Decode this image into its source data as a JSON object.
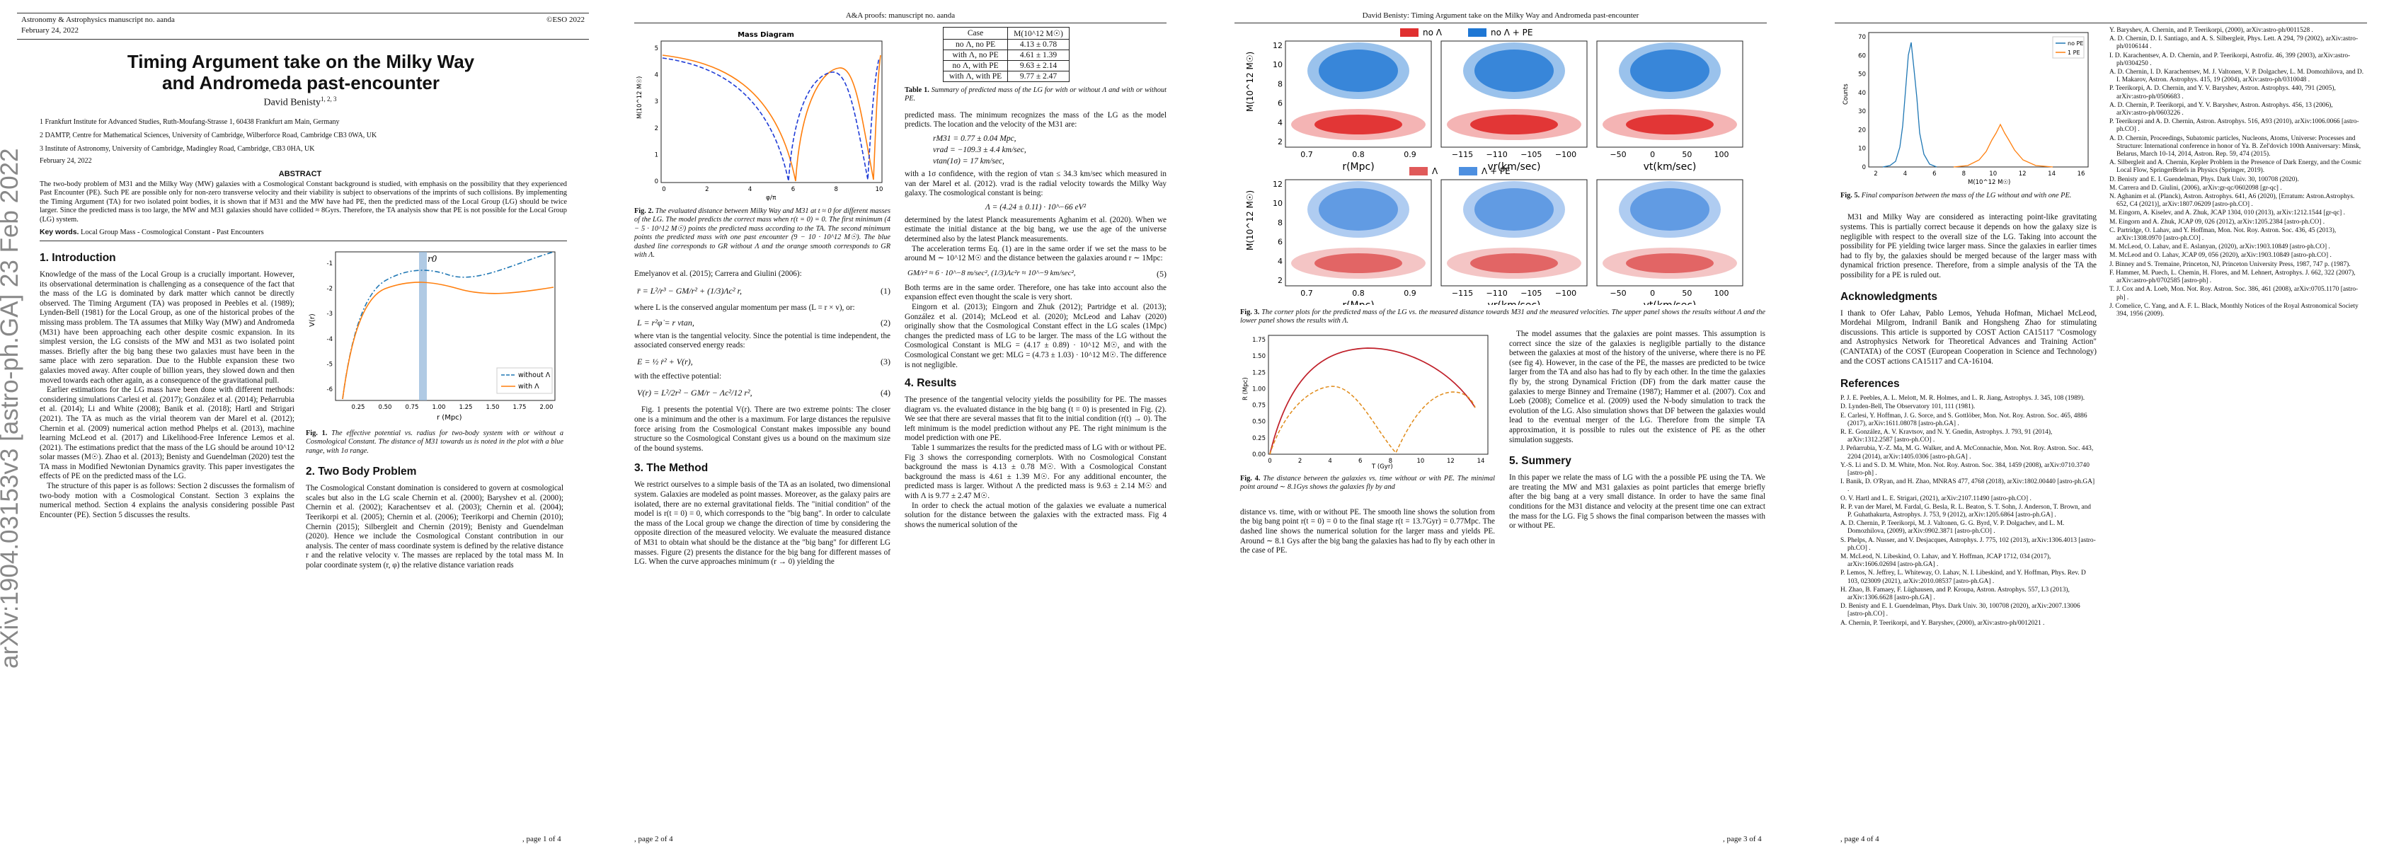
{
  "page1": {
    "journal": "Astronomy & Astrophysics manuscript no. aanda",
    "date_box": "February 24, 2022",
    "copyright": "©ESO 2022",
    "title": "Timing Argument take on the Milky Way and Andromeda past-encounter",
    "author": "David Benisty",
    "author_sup": "1, 2, 3",
    "affiliations": [
      "1 Frankfurt Institute for Advanced Studies, Ruth-Moufang-Strasse 1, 60438 Frankfurt am Main, Germany",
      "2 DAMTP, Centre for Mathematical Sciences, University of Cambridge, Wilberforce Road, Cambridge CB3 0WA, UK",
      "3 Institute of Astronomy, University of Cambridge, Madingley Road, Cambridge, CB3 0HA, UK"
    ],
    "date": "February 24, 2022",
    "abstract_heading": "ABSTRACT",
    "abstract": "The two-body problem of M31 and the Milky Way (MW) galaxies with a Cosmological Constant background is studied, with emphasis on the possibility that they experienced Past Encounter (PE). Such PE are possible only for non-zero transverse velocity and their viability is subject to observations of the imprints of such collisions. By implementing the Timing Argument (TA) for two isolated point bodies, it is shown that if M31 and the MW have had PE, then the predicted mass of the Local Group (LG) should be twice larger. Since the predicted mass is too large, the MW and M31 galaxies should have collided ≈ 8Gyrs. Therefore, the TA analysis show that PE is not possible for the Local Group (LG) system.",
    "keywords_label": "Key words.",
    "keywords": "Local Group Mass - Cosmological Constant - Past Encounters",
    "sec1_title": "1. Introduction",
    "sec1_p1": "Knowledge of the mass of the Local Group is a crucially important. However, its observational determination is challenging as a consequence of the fact that the mass of the LG is dominated by dark matter which cannot be directly observed. The Timing Argument (TA) was proposed in Peebles et al. (1989); Lynden-Bell (1981) for the Local Group, as one of the historical probes of the missing mass problem. The TA assumes that Milky Way (MW) and Andromeda (M31) have been approaching each other despite cosmic expansion. In its simplest version, the LG consists of the MW and M31 as two isolated point masses. Briefly after the big bang these two galaxies must have been in the same place with zero separation. Due to the Hubble expansion these two galaxies moved away. After couple of billion years, they slowed down and then moved towards each other again, as a consequence of the gravitational pull.",
    "sec1_p2": "Earlier estimations for the LG mass have been done with different methods: considering simulations Carlesi et al. (2017); González et al. (2014); Peñarrubia et al. (2014); Li and White (2008); Banik et al. (2018); Hartl and Strigari (2021). The TA as much as the virial theorem van der Marel et al. (2012); Chernin et al. (2009) numerical action method Phelps et al. (2013), machine learning McLeod et al. (2017) and Likelihood-Free Inference Lemos et al. (2021). The estimations predict that the mass of the LG should be around 10^12 solar masses (M☉). Zhao et al. (2013); Benisty and Guendelman (2020) test the TA mass in Modified Newtonian Dynamics gravity. This paper investigates the effects of PE on the predicted mass of the LG.",
    "sec1_p3": "The structure of this paper is as follows: Section 2 discusses the formalism of two-body motion with a Cosmological Constant. Section 3 explains the numerical method. Section 4 explains the analysis considering possible Past Encounter (PE). Section 5 discusses the results.",
    "fig1_caption_label": "Fig. 1.",
    "fig1_caption": "The effective potential vs. radius for two-body system with or without a Cosmological Constant. The distance of M31 towards us is noted in the plot with a blue range, with 1σ range.",
    "sec2_title": "2. Two Body Problem",
    "sec2_p1": "The Cosmological Constant domination is considered to govern at cosmological scales but also in the LG scale Chernin et al. (2000); Baryshev et al. (2000); Chernin et al. (2002); Karachentsev et al. (2003); Chernin et al. (2004); Teerikorpi et al. (2005); Chernin et al. (2006); Teerikorpi and Chernin (2010); Chernin (2015); Silbergleit and Chernin (2019); Benisty and Guendelman (2020). Hence we include the Cosmological Constant contribution in our analysis. The center of mass coordinate system is defined by the relative distance r and the relative velocity v. The masses are replaced by the total mass M. In polar coordinate system (r, φ) the relative distance variation reads",
    "footer": ", page 1 of 4",
    "arxiv": "arXiv:1904.03153v3  [astro-ph.GA]  23 Feb 2022",
    "fig1_plot": {
      "ylabel": "V(r)",
      "xlabel": "r (Mpc)",
      "marker": "r0",
      "yticks": [
        "-1",
        "-2",
        "-3",
        "-4",
        "-5",
        "-6"
      ],
      "xticks": [
        "0.25",
        "0.50",
        "0.75",
        "1.00",
        "1.25",
        "1.50",
        "1.75",
        "2.00"
      ],
      "legend": [
        "without Λ",
        "with Λ"
      ]
    }
  },
  "page2": {
    "header": "A&A proofs: manuscript no. aanda",
    "fig2_title": "Mass Diagram",
    "fig2_ylabel": "M(10^12 M☉)",
    "fig2_xlabel": "φ/π",
    "fig2_caption_label": "Fig. 2.",
    "fig2_caption": "The evaluated distance between Milky Way and M31 at t ≈ 0 for different masses of the LG. The model predicts the correct mass when r(t = 0) = 0. The first minimum (4 − 5 · 10^12 M☉) points the predicted mass according to the TA. The second minimum points the predicted mass with one past encounter (9 − 10 · 10^12 M☉). The blue dashed line corresponds to GR without Λ and the orange smooth corresponds to GR with Λ.",
    "intro_text": "Emelyanov et al. (2015); Carrera and Giulini (2006):",
    "eq1": "r̈ = L²/r³ − GM/r² + (1/3)Λc² r,",
    "eq1_num": "(1)",
    "eq1_text": "where L is the conserved angular momentum per mass (L = r × v), or:",
    "eq2": "L = r²φ̇ = r vtan,",
    "eq2_num": "(2)",
    "eq2_text": "where vtan is the tangential velocity. Since the potential is time independent, the associated conserved energy reads:",
    "eq3": "E = ½ ṙ² + V(r),",
    "eq3_num": "(3)",
    "eq3_text": "with the effective potential:",
    "eq4": "V(r) = L²/2r² − GM/r − Λc²/12 r²,",
    "eq4_num": "(4)",
    "eq4_text": "Fig. 1 presents the potential V(r). There are two extreme points: The closer one is a minimum and the other is a maximum. For large distances the repulsive force arising from the Cosmological Constant makes impossible any bound structure so the Cosmological Constant gives us a bound on the maximum size of the bound systems.",
    "sec3_title": "3. The Method",
    "sec3_p1": "We restrict ourselves to a simple basis of the TA as an isolated, two dimensional system. Galaxies are modeled as point masses. Moreover, as the galaxy pairs are isolated, there are no external gravitational fields. The \"initial condition\" of the model is r(t = 0) = 0, which corresponds to the \"big bang\". In order to calculate the mass of the Local group we change the direction of time by considering the opposite direction of the measured velocity. We evaluate the measured distance of M31 to obtain what should be the distance at the \"big bang\" for different LG masses. Figure (2) presents the distance for the big bang for different masses of LG. When the curve approaches minimum (r → 0) yielding the",
    "table_header": [
      "Case",
      "M(10^12 M☉)"
    ],
    "table_rows": [
      [
        "no Λ, no PE",
        "4.13 ± 0.78"
      ],
      [
        "with Λ, no PE",
        "4.61 ± 1.39"
      ],
      [
        "no Λ, with PE",
        "9.63 ± 2.14"
      ],
      [
        "with Λ, with PE",
        "9.77 ± 2.47"
      ]
    ],
    "table_caption_label": "Table 1.",
    "table_caption": "Summary of predicted mass of the LG for with or without Λ and with or without PE.",
    "col2_p1": "predicted mass. The minimum recognizes the mass of the LG as the model predicts. The location and the velocity of the M31 are:",
    "m31_r": "rM31 = 0.77 ± 0.04 Mpc,",
    "m31_vrad": "vrad = −109.3 ± 4.4 km/sec,",
    "m31_vtan": "vtan(1σ) = 17 km/sec,",
    "col2_p2": "with a 1σ confidence, with the region of vtan ≤ 34.3 km/sec which measured in van der Marel et al. (2012). vrad is the radial velocity towards the Milky Way galaxy. The cosmological constant is being:",
    "lambda_eq": "Λ = (4.24 ± 0.11) · 10^−66 eV²",
    "col2_p3": "determined by the latest Planck measurements Aghanim et al. (2020). When we estimate the initial distance at the big bang, we use the age of the universe determined also by the latest Planck measurements.",
    "col2_p4": "The acceleration terms Eq. (1) are in the same order if we set the mass to be around M ∼ 10^12 M☉ and the distance between the galaxies around r ∼ 1Mpc:",
    "eq5": "GM/r² ≈ 6 · 10^−8 m/sec²,  (1/3)Λc²r ≈ 10^−9 km/sec²,",
    "eq5_num": "(5)",
    "col2_p5": "Both terms are in the same order. Therefore, one has take into account also the expansion effect even thought the scale is very short.",
    "col2_p6": "Eingorn et al. (2013); Eingorn and Zhuk (2012); Partridge et al. (2013); González et al. (2014); McLeod et al. (2020); McLeod and Lahav (2020) originally show that the Cosmological Constant effect in the LG scales (1Mpc) changes the predicted mass of LG to be larger. The mass of the LG without the Cosmological Constant is MLG = (4.17 ± 0.89) · 10^12 M☉, and with the Cosmological Constant we get: MLG = (4.73 ± 1.03) · 10^12 M☉. The difference is not negligible.",
    "sec4_title": "4. Results",
    "sec4_p1": "The presence of the tangential velocity yields the possibility for PE. The masses diagram vs. the evaluated distance in the big bang (t = 0) is presented in Fig. (2). We see that there are several masses that fit to the initial condition (r(t) → 0). The left minimum is the model prediction without any PE. The right minimum is the model prediction with one PE.",
    "sec4_p2": "Table 1 summarizes the results for the predicted mass of LG with or without PE. Fig 3 shows the corresponding cornerplots. With no Cosmological Constant background the mass is 4.13 ± 0.78 M☉. With a Cosmological Constant background the mass is 4.61 ± 1.39 M☉. For any additional encounter, the predicted mass is larger. Without Λ the predicted mass is 9.63 ± 2.14 M☉ and with Λ is 9.77 ± 2.47 M☉.",
    "sec4_p3": "In order to check the actual motion of the galaxies we evaluate a numerical solution for the distance between the galaxies with the extracted mass. Fig 4 shows the numerical solution of the",
    "footer": ", page 2 of 4",
    "fig2_yticks": [
      "5",
      "4",
      "3",
      "2",
      "1",
      "0"
    ],
    "fig2_xticks": [
      "0",
      "2",
      "4",
      "6",
      "8",
      "10"
    ]
  },
  "page3": {
    "header": "David Benisty: Timing Argument take on the Milky Way and Andromeda past-encounter",
    "legend_top": [
      "no Λ",
      "no Λ + PE"
    ],
    "legend_bottom": [
      "Λ",
      "Λ + PE"
    ],
    "corner_ylabel": "M(10^12 M☉)",
    "corner_xlabels": [
      "r(Mpc)",
      "vr(km/sec)",
      "vt(km/sec)"
    ],
    "corner_yticks": [
      "12",
      "10",
      "8",
      "6",
      "4",
      "2"
    ],
    "corner_xticks": [
      [
        "0.7",
        "0.8",
        "0.9"
      ],
      [
        "−115",
        "−110",
        "−105",
        "−100"
      ],
      [
        "−50",
        "0",
        "50",
        "100"
      ]
    ],
    "fig3_caption_label": "Fig. 3.",
    "fig3_caption": "The corner plots for the predicted mass of the LG vs. the measured distance towards M31 and the measured velocities. The upper panel shows the results without Λ and the lower panel shows the results with Λ.",
    "fig4_ylabel": "R (Mpc)",
    "fig4_xlabel": "T (Gyr)",
    "fig4_yticks": [
      "1.75",
      "1.50",
      "1.25",
      "1.00",
      "0.75",
      "0.50",
      "0.25",
      "0.00"
    ],
    "fig4_xticks": [
      "0",
      "2",
      "4",
      "6",
      "8",
      "10",
      "12",
      "14"
    ],
    "fig4_caption_label": "Fig. 4.",
    "fig4_caption": "The distance between the galaxies vs. time without or with PE. The minimal point around ∼ 8.1Gys shows the galaxies fly by and",
    "col1_p1": "distance vs. time, with or without PE. The smooth line shows the solution from the big bang point r(t = 0) = 0 to the final stage r(t = 13.7Gyr) = 0.77Mpc. The dashed line shows the numerical solution for the larger mass and yields PE. Around ∼ 8.1 Gys after the big bang the galaxies has had to fly by each other in the case of PE.",
    "col2_p1": "The model assumes that the galaxies are point masses. This assumption is correct since the size of the galaxies is negligible partially to the distance between the galaxies at most of the history of the universe, where there is no PE (see fig 4). However, in the case of the PE, the masses are predicted to be twice larger from the TA and also has had to fly by each other. In the time the galaxies fly by, the strong Dynamical Friction (DF) from the dark matter cause the galaxies to merge Binney and Tremaine (1987); Hammer et al. (2007). Cox and Loeb (2008); Comelice et al. (2009) used the N-body simulation to track the evolution of the LG. Also simulation shows that DF between the galaxies would lead to the eventual merger of the LG. Therefore from the simple TA approximation, it is possible to rules out the existence of PE as the other simulation suggests.",
    "sec5_title": "5. Summery",
    "sec5_p1": "In this paper we relate the mass of LG with the a possible PE using the TA. We are treating the MW and M31 galaxies as point particles that emerge briefly after the big bang at a very small distance. In order to have the same final conditions for the M31 distance and velocity at the present time one can extract the mass for the LG. Fig 5 shows the final comparison between the masses with or without PE.",
    "footer": ", page 3 of 4"
  },
  "page4": {
    "fig5_legend": [
      "no PE",
      "1 PE"
    ],
    "fig5_ylabel": "Counts",
    "fig5_xlabel": "M(10^12 M☉)",
    "fig5_yticks": [
      "70",
      "60",
      "50",
      "40",
      "30",
      "20",
      "10",
      "0"
    ],
    "fig5_xticks": [
      "2",
      "4",
      "6",
      "8",
      "10",
      "12",
      "14",
      "16"
    ],
    "fig5_caption_label": "Fig. 5.",
    "fig5_caption": "Final comparison between the mass of the LG without and with one PE.",
    "p1": "M31 and Milky Way are considered as interacting point-like gravitating systems. This is partially correct because it depends on how the galaxy size is negligible with respect to the overall size of the LG. Taking into account the possibility for PE yielding twice larger mass. Since the galaxies in earlier times had to fly by, the galaxies should be merged because of the larger mass with dynamical friction presence. Therefore, from a simple analysis of the TA the possibility for a PE is ruled out.",
    "ack_title": "Acknowledgments",
    "ack": "I thank to Ofer Lahav, Pablo Lemos, Yehuda Hofman, Michael McLeod, Mordehai Milgrom, Indranil Banik and Hongsheng Zhao for stimulating discussions. This article is supported by COST Action CA15117 \"Cosmology and Astrophysics Network for Theoretical Advances and Training Action\" (CANTATA) of the COST (European Cooperation in Science and Technology) and the COST actions CA15117 and CA-16104.",
    "refs_title": "References",
    "refs_col1": [
      "Y. Baryshev, A. Chernin, and P. Teerikorpi, (2000), arXiv:astro-ph/0011528 .",
      "A. D. Chernin, D. I. Santiago, and A. S. Silbergleit, Phys. Lett. A 294, 79 (2002), arXiv:astro-ph/0106144 .",
      "I. D. Karachentsev, A. D. Chernin, and P. Teerikorpi, Astrofiz. 46, 399 (2003), arXiv:astro-ph/0304250 .",
      "A. D. Chernin, I. D. Karachentsev, M. J. Valtonen, V. P. Dolgachev, L. M. Domozhilova, and D. I. Makarov, Astron. Astrophys. 415, 19 (2004), arXiv:astro-ph/0310048 .",
      "P. Teerikorpi, A. D. Chernin, and Y. V. Baryshev, Astron. Astrophys. 440, 791 (2005), arXiv:astro-ph/0506683 .",
      "A. D. Chernin, P. Teerikorpi, and Y. V. Baryshev, Astron. Astrophys. 456, 13 (2006), arXiv:astro-ph/0603226 .",
      "P. Teerikorpi and A. D. Chernin, Astron. Astrophys. 516, A93 (2010), arXiv:1006.0066 [astro-ph.CO] .",
      "A. D. Chernin, Proceedings, Subatomic particles, Nucleons, Atoms, Universe: Processes and Structure: International conference in honor of Ya. B. Zel'dovich 100th Anniversary: Minsk, Belarus, March 10-14, 2014, Astron. Rep. 59, 474 (2015).",
      "A. Silbergleit and A. Chernin, Kepler Problem in the Presence of Dark Energy, and the Cosmic Local Flow, SpringerBriefs in Physics (Springer, 2019).",
      "D. Benisty and E. I. Guendelman, Phys. Dark Univ. 30, 100708 (2020).",
      "M. Carrera and D. Giulini, (2006), arXiv:gr-qc/0602098 [gr-qc] .",
      "N. Aghanim et al. (Planck), Astron. Astrophys. 641, A6 (2020), [Erratum: Astron.Astrophys. 652, C4 (2021)], arXiv:1807.06209 [astro-ph.CO] .",
      "M. Eingorn, A. Kiselev, and A. Zhuk, JCAP 1304, 010 (2013), arXiv:1212.1544 [gr-qc] .",
      "M. Eingorn and A. Zhuk, JCAP 09, 026 (2012), arXiv:1205.2384 [astro-ph.CO] .",
      "C. Partridge, O. Lahav, and Y. Hoffman, Mon. Not. Roy. Astron. Soc. 436, 45 (2013), arXiv:1308.0970 [astro-ph.CO] .",
      "M. McLeod, O. Lahav, and E. Aslanyan, (2020), arXiv:1903.10849 [astro-ph.CO] .",
      "M. McLeod and O. Lahav, JCAP 09, 056 (2020), arXiv:1903.10849 [astro-ph.CO] .",
      "J. Binney and S. Tremaine, Princeton, NJ, Princeton University Press, 1987, 747 p. (1987).",
      "F. Hammer, M. Puech, L. Chemin, H. Flores, and M. Lehnert, Astrophys. J. 662, 322 (2007), arXiv:astro-ph/0702585 [astro-ph] .",
      "T. J. Cox and A. Loeb, Mon. Not. Roy. Astron. Soc. 386, 461 (2008), arXiv:0705.1170 [astro-ph] .",
      "J. Comelice, C. Yang, and A. F. L. Black, Monthly Notices of the Royal Astronomical Society 394, 1956 (2009)."
    ],
    "refs_col2": [
      "P. J. E. Peebles, A. L. Melott, M. R. Holmes, and L. R. Jiang, Astrophys. J. 345, 108 (1989).",
      "D. Lynden-Bell, The Observatory 101, 111 (1981).",
      "E. Carlesi, Y. Hoffman, J. G. Sorce, and S. Gottlöber, Mon. Not. Roy. Astron. Soc. 465, 4886 (2017), arXiv:1611.08078 [astro-ph.GA] .",
      "R. E. González, A. V. Kravtsov, and N. Y. Gnedin, Astrophys. J. 793, 91 (2014), arXiv:1312.2587 [astro-ph.CO] .",
      "J. Peñarrubia, Y.-Z. Ma, M. G. Walker, and A. McConnachie, Mon. Not. Roy. Astron. Soc. 443, 2204 (2014), arXiv:1405.0306 [astro-ph.GA] .",
      "Y.-S. Li and S. D. M. White, Mon. Not. Roy. Astron. Soc. 384, 1459 (2008), arXiv:0710.3740 [astro-ph] .",
      "I. Banik, D. O'Ryan, and H. Zhao, MNRAS 477, 4768 (2018), arXiv:1802.00440 [astro-ph.GA] .",
      "O. V. Hartl and L. E. Strigari, (2021), arXiv:2107.11490 [astro-ph.CO] .",
      "R. P. van der Marel, M. Fardal, G. Besla, R. L. Beaton, S. T. Sohn, J. Anderson, T. Brown, and P. Guhathakurta, Astrophys. J. 753, 9 (2012), arXiv:1205.6864 [astro-ph.GA] .",
      "A. D. Chernin, P. Teerikorpi, M. J. Valtonen, G. G. Byrd, V. P. Dolgachev, and L. M. Domozhilova, (2009), arXiv:0902.3871 [astro-ph.CO] .",
      "S. Phelps, A. Nusser, and V. Desjacques, Astrophys. J. 775, 102 (2013), arXiv:1306.4013 [astro-ph.CO] .",
      "M. McLeod, N. Libeskind, O. Lahav, and Y. Hoffman, JCAP 1712, 034 (2017), arXiv:1606.02694 [astro-ph.GA] .",
      "P. Lemos, N. Jeffrey, L. Whiteway, O. Lahav, N. I. Libeskind, and Y. Hoffman, Phys. Rev. D 103, 023009 (2021), arXiv:2010.08537 [astro-ph.GA] .",
      "H. Zhao, B. Famaey, F. Lüghausen, and P. Kroupa, Astron. Astrophys. 557, L3 (2013), arXiv:1306.6628 [astro-ph.GA] .",
      "D. Benisty and E. I. Guendelman, Phys. Dark Univ. 30, 100708 (2020), arXiv:2007.13006 [astro-ph.CO] .",
      "A. Chernin, P. Teerikorpi, and Y. Baryshev, (2000), arXiv:astro-ph/0012021 ."
    ],
    "footer": ", page 4 of 4"
  }
}
